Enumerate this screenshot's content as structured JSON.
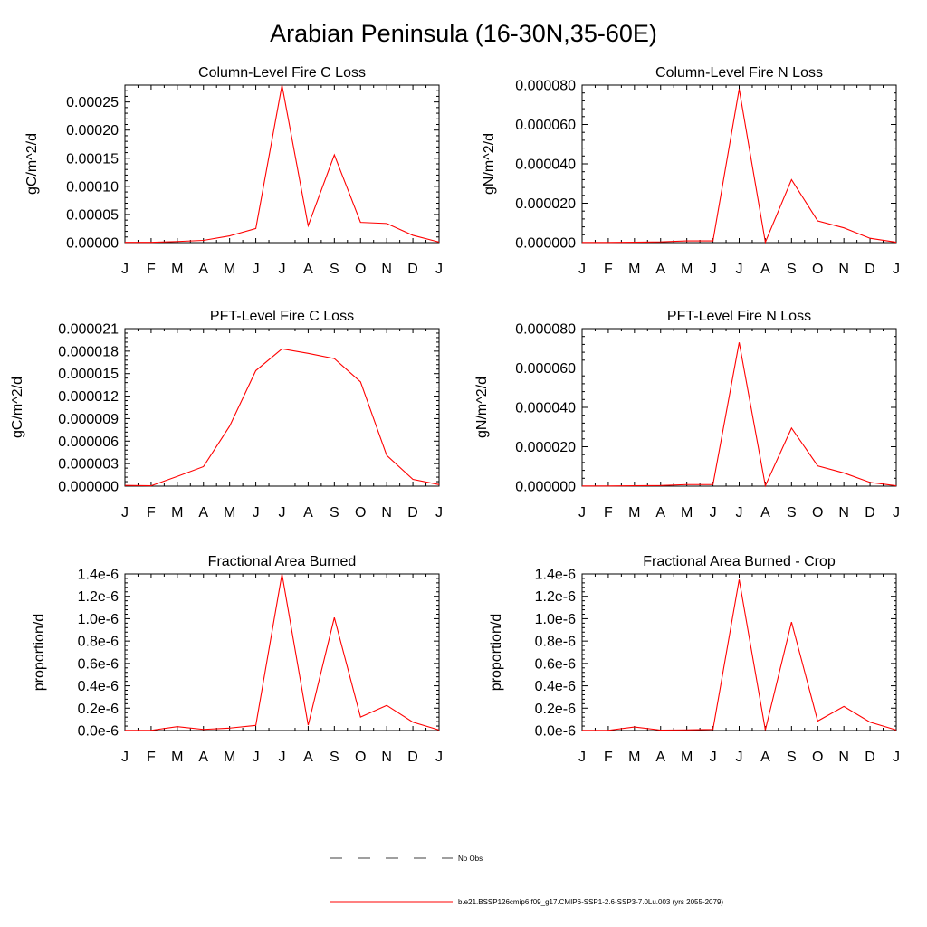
{
  "title": "Arabian Peninsula (16-30N,35-60E)",
  "colors": {
    "model_line": "#ff0000",
    "obs_line": "#000000",
    "axis": "#000000"
  },
  "chart_data": [
    {
      "type": "line",
      "title": "Column-Level Fire C Loss",
      "ylabel": "gC/m^2/d",
      "categories": [
        "J",
        "F",
        "M",
        "A",
        "M",
        "J",
        "J",
        "A",
        "S",
        "O",
        "N",
        "D",
        "J"
      ],
      "ylim": [
        0,
        0.00028
      ],
      "yticks": [
        0,
        5e-05,
        0.0001,
        0.00015,
        0.0002,
        0.00025
      ],
      "ytick_labels": [
        "0.00000",
        "0.00005",
        "0.00010",
        "0.00015",
        "0.00020",
        "0.00025"
      ],
      "series": [
        {
          "name": "b.e21.BSSP126cmip6.f09_g17.CMIP6-SSP1-2.6-SSP3-7.0Lu.003 (yrs 2055-2079)",
          "values": [
            5e-07,
            5e-07,
            2e-06,
            4e-06,
            1.2e-05,
            2.5e-05,
            0.00028,
            3e-05,
            0.000156,
            3.6e-05,
            3.4e-05,
            1.3e-05,
            1e-06
          ]
        }
      ]
    },
    {
      "type": "line",
      "title": "Column-Level Fire N Loss",
      "ylabel": "gN/m^2/d",
      "categories": [
        "J",
        "F",
        "M",
        "A",
        "M",
        "J",
        "J",
        "A",
        "S",
        "O",
        "N",
        "D",
        "J"
      ],
      "ylim": [
        0,
        8e-05
      ],
      "yticks": [
        0,
        2e-05,
        4e-05,
        6e-05,
        8e-05
      ],
      "ytick_labels": [
        "0.000000",
        "0.000020",
        "0.000040",
        "0.000060",
        "0.000080"
      ],
      "series": [
        {
          "name": "b.e21.BSSP126cmip6.f09_g17.CMIP6-SSP1-2.6-SSP3-7.0Lu.003 (yrs 2055-2079)",
          "values": [
            1e-07,
            1e-07,
            2e-07,
            4e-07,
            9e-07,
            9e-07,
            7.8e-05,
            2e-07,
            3.2e-05,
            1.1e-05,
            7.5e-06,
            2.2e-06,
            2e-07
          ]
        }
      ]
    },
    {
      "type": "line",
      "title": "PFT-Level Fire C Loss",
      "ylabel": "gC/m^2/d",
      "categories": [
        "J",
        "F",
        "M",
        "A",
        "M",
        "J",
        "J",
        "A",
        "S",
        "O",
        "N",
        "D",
        "J"
      ],
      "ylim": [
        0,
        2.1e-05
      ],
      "yticks": [
        0,
        3e-06,
        6e-06,
        9e-06,
        1.2e-05,
        1.5e-05,
        1.8e-05,
        2.1e-05
      ],
      "ytick_labels": [
        "0.000000",
        "0.000003",
        "0.000006",
        "0.000009",
        "0.000012",
        "0.000015",
        "0.000018",
        "0.000021"
      ],
      "series": [
        {
          "name": "b.e21.BSSP126cmip6.f09_g17.CMIP6-SSP1-2.6-SSP3-7.0Lu.003 (yrs 2055-2079)",
          "values": [
            1e-07,
            5e-08,
            1.3e-06,
            2.6e-06,
            8e-06,
            1.54e-05,
            1.83e-05,
            1.77e-05,
            1.7e-05,
            1.39e-05,
            4.1e-06,
            9e-07,
            2e-07
          ]
        }
      ]
    },
    {
      "type": "line",
      "title": "PFT-Level Fire N Loss",
      "ylabel": "gN/m^2/d",
      "categories": [
        "J",
        "F",
        "M",
        "A",
        "M",
        "J",
        "J",
        "A",
        "S",
        "O",
        "N",
        "D",
        "J"
      ],
      "ylim": [
        0,
        8e-05
      ],
      "yticks": [
        0,
        2e-05,
        4e-05,
        6e-05,
        8e-05
      ],
      "ytick_labels": [
        "0.000000",
        "0.000020",
        "0.000040",
        "0.000060",
        "0.000080"
      ],
      "series": [
        {
          "name": "b.e21.BSSP126cmip6.f09_g17.CMIP6-SSP1-2.6-SSP3-7.0Lu.003 (yrs 2055-2079)",
          "values": [
            1e-07,
            1e-07,
            2e-07,
            3e-07,
            8e-07,
            8e-07,
            7.3e-05,
            2e-07,
            2.95e-05,
            1.03e-05,
            6.7e-06,
            1.9e-06,
            2e-07
          ]
        }
      ]
    },
    {
      "type": "line",
      "title": "Fractional Area Burned",
      "ylabel": "proportion/d",
      "categories": [
        "J",
        "F",
        "M",
        "A",
        "M",
        "J",
        "J",
        "A",
        "S",
        "O",
        "N",
        "D",
        "J"
      ],
      "ylim": [
        0,
        1.4e-06
      ],
      "yticks": [
        0,
        2e-07,
        4e-07,
        6e-07,
        8e-07,
        1e-06,
        1.2e-06,
        1.4e-06
      ],
      "ytick_labels": [
        "0.0e-6",
        "0.2e-6",
        "0.4e-6",
        "0.6e-6",
        "0.8e-6",
        "1.0e-6",
        "1.2e-6",
        "1.4e-6"
      ],
      "series": [
        {
          "name": "b.e21.BSSP126cmip6.f09_g17.CMIP6-SSP1-2.6-SSP3-7.0Lu.003 (yrs 2055-2079)",
          "values": [
            2e-09,
            2e-09,
            3.5e-08,
            1e-08,
            2.2e-08,
            4.6e-08,
            1.4e-06,
            4.8e-08,
            1.01e-06,
            1.2e-07,
            2.25e-07,
            7.5e-08,
            5e-09
          ]
        }
      ]
    },
    {
      "type": "line",
      "title": "Fractional Area Burned - Crop",
      "ylabel": "proportion/d",
      "categories": [
        "J",
        "F",
        "M",
        "A",
        "M",
        "J",
        "J",
        "A",
        "S",
        "O",
        "N",
        "D",
        "J"
      ],
      "ylim": [
        0,
        1.4e-06
      ],
      "yticks": [
        0,
        2e-07,
        4e-07,
        6e-07,
        8e-07,
        1e-06,
        1.2e-06,
        1.4e-06
      ],
      "ytick_labels": [
        "0.0e-6",
        "0.2e-6",
        "0.4e-6",
        "0.6e-6",
        "0.8e-6",
        "1.0e-6",
        "1.2e-6",
        "1.4e-6"
      ],
      "series": [
        {
          "name": "b.e21.BSSP126cmip6.f09_g17.CMIP6-SSP1-2.6-SSP3-7.0Lu.003 (yrs 2055-2079)",
          "values": [
            2e-09,
            2e-09,
            3.2e-08,
            4e-09,
            6e-09,
            1e-08,
            1.35e-06,
            5e-09,
            9.7e-07,
            8.5e-08,
            2.15e-07,
            7.5e-08,
            5e-09
          ]
        }
      ]
    }
  ],
  "legend": {
    "items": [
      {
        "label": "No Obs",
        "style": "dashed"
      },
      {
        "label": "b.e21.BSSP126cmip6.f09_g17.CMIP6-SSP1-2.6-SSP3-7.0Lu.003 (yrs 2055-2079)",
        "style": "solid"
      }
    ]
  }
}
